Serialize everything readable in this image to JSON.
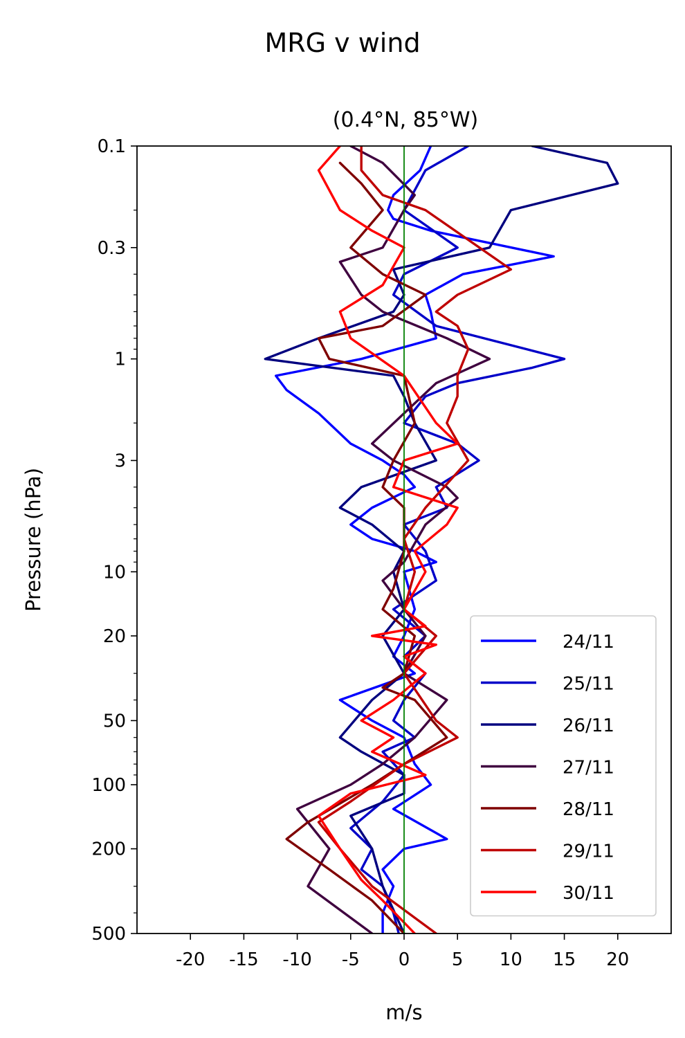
{
  "figure": {
    "suptitle": "MRG v wind"
  },
  "chart_data": {
    "type": "line",
    "title": "(0.4°N, 85°W)",
    "xlabel": "m/s",
    "ylabel": "Pressure (hPa)",
    "xlim": [
      -25,
      25
    ],
    "ylim": [
      500,
      0.1
    ],
    "yscale": "log",
    "xticks": [
      -20,
      -15,
      -10,
      -5,
      0,
      5,
      10,
      15,
      20
    ],
    "xtick_labels": [
      "-20",
      "-15",
      "-10",
      "-5",
      "0",
      "5",
      "10",
      "15",
      "20"
    ],
    "yticks": [
      0.1,
      0.3,
      1,
      3,
      10,
      20,
      50,
      100,
      200,
      500
    ],
    "ytick_labels": [
      "0.1",
      "0.3",
      "1",
      "3",
      "10",
      "20",
      "50",
      "100",
      "200",
      "500"
    ],
    "reference_line": {
      "x": 0,
      "color": "#008000"
    },
    "grid": false,
    "legend_position": "lower-right",
    "series": [
      {
        "name": "24/11",
        "color": "#0000ff",
        "points": [
          [
            2.5,
            0.1
          ],
          [
            1.5,
            0.13
          ],
          [
            -1,
            0.17
          ],
          [
            -1.5,
            0.2
          ],
          [
            -1,
            0.22
          ],
          [
            2.5,
            0.25
          ],
          [
            14,
            0.33
          ],
          [
            5.5,
            0.4
          ],
          [
            2,
            0.5
          ],
          [
            2.5,
            0.6
          ],
          [
            3,
            0.8
          ],
          [
            -4,
            1
          ],
          [
            -12,
            1.2
          ],
          [
            -11,
            1.4
          ],
          [
            -8,
            1.8
          ],
          [
            -5,
            2.5
          ],
          [
            -2,
            3
          ],
          [
            0,
            3.5
          ],
          [
            1,
            4
          ],
          [
            -3,
            5
          ],
          [
            -5,
            6
          ],
          [
            -3,
            7
          ],
          [
            1,
            8
          ],
          [
            3,
            9
          ],
          [
            0,
            10
          ],
          [
            1,
            15
          ],
          [
            0,
            20
          ],
          [
            -1,
            25
          ],
          [
            1,
            30
          ],
          [
            -6,
            40
          ],
          [
            -3,
            50
          ],
          [
            0,
            60
          ],
          [
            1,
            80
          ],
          [
            2.5,
            100
          ],
          [
            -1,
            130
          ],
          [
            4,
            180
          ],
          [
            0,
            200
          ],
          [
            -2,
            250
          ],
          [
            -1,
            300
          ],
          [
            -2,
            400
          ],
          [
            -2,
            500
          ]
        ]
      },
      {
        "name": "25/11",
        "color": "#0000c8",
        "points": [
          [
            6,
            0.1
          ],
          [
            2,
            0.13
          ],
          [
            0,
            0.2
          ],
          [
            5,
            0.3
          ],
          [
            0,
            0.4
          ],
          [
            -1,
            0.5
          ],
          [
            3,
            0.7
          ],
          [
            15,
            1
          ],
          [
            12,
            1.1
          ],
          [
            5,
            1.3
          ],
          [
            2,
            1.5
          ],
          [
            0,
            2
          ],
          [
            5,
            2.5
          ],
          [
            7,
            3
          ],
          [
            3,
            4
          ],
          [
            4,
            5
          ],
          [
            0,
            6
          ],
          [
            2,
            8
          ],
          [
            3,
            11
          ],
          [
            -1,
            15
          ],
          [
            2,
            20
          ],
          [
            0,
            25
          ],
          [
            2,
            30
          ],
          [
            0,
            40
          ],
          [
            -1,
            50
          ],
          [
            1,
            60
          ],
          [
            -2,
            70
          ],
          [
            0,
            90
          ],
          [
            -2,
            120
          ],
          [
            -5,
            160
          ],
          [
            -3,
            200
          ],
          [
            -4,
            250
          ],
          [
            -2,
            300
          ],
          [
            -1,
            400
          ],
          [
            -0.5,
            500
          ]
        ]
      },
      {
        "name": "26/11",
        "color": "#00007f",
        "points": [
          [
            12,
            0.1
          ],
          [
            19,
            0.12
          ],
          [
            20,
            0.15
          ],
          [
            10,
            0.2
          ],
          [
            8,
            0.3
          ],
          [
            -1,
            0.38
          ],
          [
            0,
            0.5
          ],
          [
            -1,
            0.6
          ],
          [
            -8,
            0.8
          ],
          [
            -13,
            1
          ],
          [
            -1,
            1.2
          ],
          [
            0,
            1.5
          ],
          [
            1,
            2
          ],
          [
            3,
            3
          ],
          [
            -4,
            4
          ],
          [
            -6,
            5
          ],
          [
            -3,
            6
          ],
          [
            0,
            8
          ],
          [
            -1,
            10
          ],
          [
            0,
            15
          ],
          [
            -2,
            20
          ],
          [
            0,
            30
          ],
          [
            -3,
            40
          ],
          [
            -6,
            60
          ],
          [
            -4,
            70
          ],
          [
            0,
            90
          ],
          [
            0,
            110
          ],
          [
            -5,
            140
          ],
          [
            -3,
            200
          ],
          [
            -2,
            300
          ],
          [
            0,
            500
          ]
        ]
      },
      {
        "name": "27/11",
        "color": "#3f003f",
        "points": [
          [
            -5,
            0.1
          ],
          [
            -2,
            0.12
          ],
          [
            1,
            0.17
          ],
          [
            0,
            0.2
          ],
          [
            -2,
            0.3
          ],
          [
            -6,
            0.35
          ],
          [
            -4,
            0.5
          ],
          [
            -2,
            0.6
          ],
          [
            4,
            0.8
          ],
          [
            8,
            1
          ],
          [
            3,
            1.3
          ],
          [
            0,
            1.8
          ],
          [
            -3,
            2.5
          ],
          [
            -1,
            3
          ],
          [
            4,
            4
          ],
          [
            5,
            4.5
          ],
          [
            2,
            6
          ],
          [
            0,
            9
          ],
          [
            -2,
            11
          ],
          [
            0,
            15
          ],
          [
            2,
            20
          ],
          [
            0,
            30
          ],
          [
            4,
            40
          ],
          [
            1,
            60
          ],
          [
            -2,
            80
          ],
          [
            -5,
            100
          ],
          [
            -10,
            130
          ],
          [
            -7,
            200
          ],
          [
            -9,
            300
          ],
          [
            -3,
            500
          ]
        ]
      },
      {
        "name": "28/11",
        "color": "#7f0000",
        "points": [
          [
            -6,
            0.12
          ],
          [
            -4,
            0.15
          ],
          [
            -2,
            0.2
          ],
          [
            -5,
            0.3
          ],
          [
            -2,
            0.4
          ],
          [
            2,
            0.5
          ],
          [
            -2,
            0.7
          ],
          [
            -8,
            0.8
          ],
          [
            -7,
            1
          ],
          [
            0,
            1.2
          ],
          [
            1,
            2
          ],
          [
            -1,
            3
          ],
          [
            -2,
            4
          ],
          [
            0,
            5
          ],
          [
            0,
            8
          ],
          [
            -1,
            12
          ],
          [
            -2,
            15
          ],
          [
            1,
            20
          ],
          [
            0,
            30
          ],
          [
            -2,
            35
          ],
          [
            1,
            40
          ],
          [
            4,
            60
          ],
          [
            0,
            80
          ],
          [
            -3,
            100
          ],
          [
            -9,
            150
          ],
          [
            -11,
            180
          ],
          [
            -7,
            250
          ],
          [
            -3,
            350
          ],
          [
            0,
            500
          ]
        ]
      },
      {
        "name": "29/11",
        "color": "#bf0000",
        "points": [
          [
            -4,
            0.1
          ],
          [
            -4,
            0.13
          ],
          [
            -2,
            0.17
          ],
          [
            2,
            0.2
          ],
          [
            10,
            0.38
          ],
          [
            5,
            0.5
          ],
          [
            3,
            0.6
          ],
          [
            5,
            0.7
          ],
          [
            6,
            0.9
          ],
          [
            5,
            1.2
          ],
          [
            5,
            1.5
          ],
          [
            4,
            2
          ],
          [
            6,
            3
          ],
          [
            2,
            5
          ],
          [
            0,
            7
          ],
          [
            1,
            10
          ],
          [
            0,
            15
          ],
          [
            3,
            20
          ],
          [
            0,
            30
          ],
          [
            3,
            50
          ],
          [
            5,
            60
          ],
          [
            0,
            80
          ],
          [
            -5,
            120
          ],
          [
            -8,
            150
          ],
          [
            -6,
            200
          ],
          [
            -3,
            300
          ],
          [
            3,
            500
          ]
        ]
      },
      {
        "name": "30/11",
        "color": "#ff0000",
        "points": [
          [
            -6,
            0.1
          ],
          [
            -8,
            0.13
          ],
          [
            -6,
            0.2
          ],
          [
            -3,
            0.25
          ],
          [
            0,
            0.3
          ],
          [
            -2,
            0.45
          ],
          [
            -6,
            0.6
          ],
          [
            -5,
            0.8
          ],
          [
            0,
            1.2
          ],
          [
            3,
            2
          ],
          [
            5,
            2.5
          ],
          [
            0,
            3
          ],
          [
            -1,
            4
          ],
          [
            5,
            5
          ],
          [
            4,
            6
          ],
          [
            1,
            8
          ],
          [
            2,
            10
          ],
          [
            0,
            15
          ],
          [
            2,
            18
          ],
          [
            -3,
            20
          ],
          [
            3,
            22
          ],
          [
            0,
            25
          ],
          [
            2,
            30
          ],
          [
            -1,
            40
          ],
          [
            -4,
            50
          ],
          [
            -1,
            60
          ],
          [
            -3,
            70
          ],
          [
            2,
            90
          ],
          [
            -5,
            110
          ],
          [
            -8,
            140
          ],
          [
            -6,
            200
          ],
          [
            -4,
            280
          ],
          [
            -2,
            350
          ],
          [
            1,
            500
          ]
        ]
      }
    ]
  }
}
